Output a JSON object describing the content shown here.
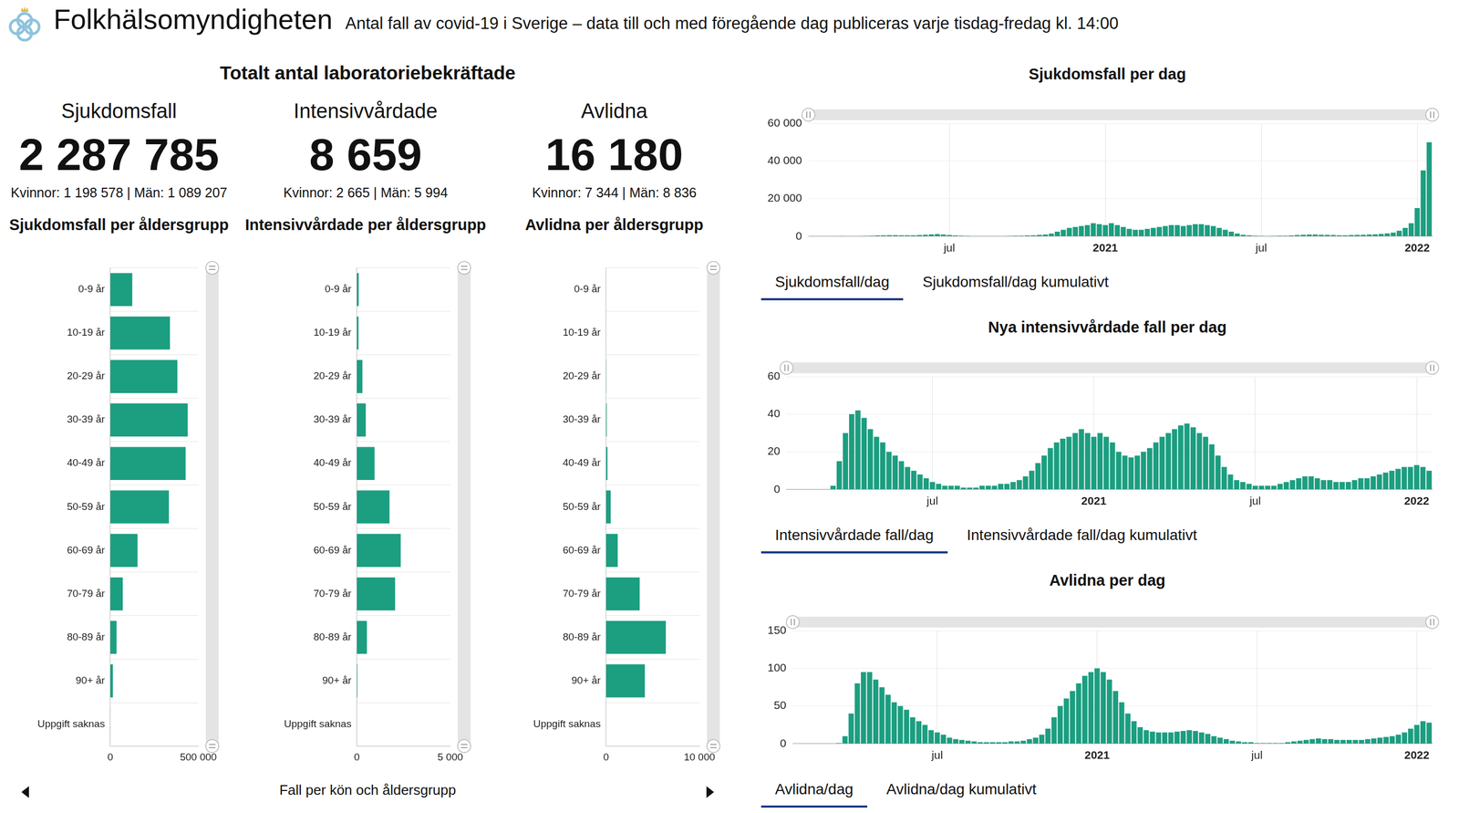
{
  "header": {
    "title": "Folkhälsomyndigheten",
    "subtitle": "Antal fall av covid-19 i Sverige – data till och med föregående dag publiceras varje tisdag-fredag kl. 14:00"
  },
  "section_title": "Totalt antal laboratoriebekräftade",
  "kpis": [
    {
      "title": "Sjukdomsfall",
      "value": "2 287 785",
      "breakdown": "Kvinnor: 1 198 578 | Män: 1 089 207"
    },
    {
      "title": "Intensivvårdade",
      "value": "8 659",
      "breakdown": "Kvinnor: 2 665 | Män: 5 994"
    },
    {
      "title": "Avlidna",
      "value": "16 180",
      "breakdown": "Kvinnor: 7 344 | Män: 8 836"
    }
  ],
  "footer_caption": "Fall per kön och åldersgrupp",
  "tabs": [
    [
      "Sjukdomsfall/dag",
      "Sjukdomsfall/dag kumulativt"
    ],
    [
      "Intensivvårdade fall/dag",
      "Intensivvårdade fall/dag kumulativt"
    ],
    [
      "Avlidna/dag",
      "Avlidna/dag kumulativt"
    ]
  ],
  "chart_data": [
    {
      "type": "bar",
      "title": "Sjukdomsfall per åldersgrupp",
      "orientation": "horizontal",
      "grid": true,
      "color": "#1c9e80",
      "categories": [
        "0-9 år",
        "10-19 år",
        "20-29 år",
        "30-39 år",
        "40-49 år",
        "50-59 år",
        "60-69 år",
        "70-79 år",
        "80-89 år",
        "90+ år",
        "Uppgift saknas"
      ],
      "values": [
        125000,
        339000,
        381000,
        440000,
        428000,
        333000,
        155000,
        71000,
        36000,
        15000,
        1000
      ],
      "xlim": [
        0,
        500000
      ],
      "xticks": [
        0,
        {
          "value": 500000,
          "label": "500 000"
        }
      ]
    },
    {
      "type": "bar",
      "title": "Intensivvårdade per åldersgrupp",
      "orientation": "horizontal",
      "grid": true,
      "color": "#1c9e80",
      "categories": [
        "0-9 år",
        "10-19 år",
        "20-29 år",
        "30-39 år",
        "40-49 år",
        "50-59 år",
        "60-69 år",
        "70-79 år",
        "80-89 år",
        "90+ år",
        "Uppgift saknas"
      ],
      "values": [
        100,
        90,
        300,
        480,
        950,
        1750,
        2350,
        2050,
        540,
        30,
        0
      ],
      "xlim": [
        0,
        5000
      ],
      "xticks": [
        0,
        {
          "value": 5000,
          "label": "5 000"
        }
      ]
    },
    {
      "type": "bar",
      "title": "Avlidna per åldersgrupp",
      "orientation": "horizontal",
      "grid": true,
      "color": "#1c9e80",
      "categories": [
        "0-9 år",
        "10-19 år",
        "20-29 år",
        "30-39 år",
        "40-49 år",
        "50-59 år",
        "60-69 år",
        "70-79 år",
        "80-89 år",
        "90+ år",
        "Uppgift saknas"
      ],
      "values": [
        5,
        10,
        30,
        70,
        150,
        500,
        1250,
        3600,
        6400,
        4150,
        0
      ],
      "xlim": [
        0,
        10000
      ],
      "xticks": [
        0,
        {
          "value": 10000,
          "label": "10 000"
        }
      ]
    },
    {
      "type": "bar",
      "title": "Sjukdomsfall per dag",
      "grid": true,
      "color": "#1c9e80",
      "categories": [
        null,
        null,
        null,
        null,
        null,
        null,
        null,
        null,
        null,
        null,
        null,
        null,
        null,
        null,
        null,
        null,
        null,
        null,
        null,
        null,
        null,
        null,
        null,
        "jul",
        null,
        null,
        null,
        null,
        null,
        null,
        null,
        null,
        null,
        null,
        null,
        null,
        null,
        null,
        null,
        null,
        null,
        null,
        null,
        null,
        null,
        null,
        null,
        null,
        null,
        "2021",
        null,
        null,
        null,
        null,
        null,
        null,
        null,
        null,
        null,
        null,
        null,
        null,
        null,
        null,
        null,
        null,
        null,
        null,
        null,
        null,
        null,
        null,
        null,
        null,
        null,
        "jul",
        null,
        null,
        null,
        null,
        null,
        null,
        null,
        null,
        null,
        null,
        null,
        null,
        null,
        null,
        null,
        null,
        null,
        null,
        null,
        null,
        null,
        null,
        null,
        null,
        null,
        "2022",
        null,
        null
      ],
      "values": [
        0,
        0,
        0,
        0,
        0,
        10,
        50,
        150,
        200,
        300,
        400,
        500,
        600,
        650,
        650,
        600,
        600,
        600,
        700,
        900,
        1100,
        1200,
        1000,
        700,
        500,
        350,
        300,
        250,
        250,
        250,
        250,
        250,
        250,
        300,
        350,
        400,
        500,
        600,
        800,
        1000,
        1500,
        2500,
        3500,
        4500,
        5000,
        5500,
        6000,
        7000,
        6500,
        6000,
        7000,
        6000,
        5000,
        4000,
        3500,
        3500,
        4000,
        4500,
        5000,
        5500,
        6000,
        6000,
        5500,
        6000,
        6500,
        6500,
        6000,
        5500,
        4500,
        3500,
        2500,
        1500,
        900,
        600,
        400,
        300,
        250,
        300,
        350,
        400,
        500,
        700,
        900,
        1000,
        1000,
        900,
        800,
        700,
        600,
        600,
        700,
        800,
        900,
        1000,
        1100,
        1300,
        1600,
        2000,
        3000,
        4500,
        7000,
        15000,
        35000,
        50000
      ],
      "ylim": [
        0,
        60000
      ],
      "yticks": [
        0,
        {
          "value": 20000,
          "label": "20 000"
        },
        {
          "value": 40000,
          "label": "40 000"
        },
        {
          "value": 60000,
          "label": "60 000"
        }
      ]
    },
    {
      "type": "bar",
      "title": "Nya intensivvårdade fall per dag",
      "grid": true,
      "color": "#1c9e80",
      "categories": [
        null,
        null,
        null,
        null,
        null,
        null,
        null,
        null,
        null,
        null,
        null,
        null,
        null,
        null,
        null,
        null,
        null,
        null,
        null,
        null,
        null,
        null,
        null,
        "jul",
        null,
        null,
        null,
        null,
        null,
        null,
        null,
        null,
        null,
        null,
        null,
        null,
        null,
        null,
        null,
        null,
        null,
        null,
        null,
        null,
        null,
        null,
        null,
        null,
        null,
        "2021",
        null,
        null,
        null,
        null,
        null,
        null,
        null,
        null,
        null,
        null,
        null,
        null,
        null,
        null,
        null,
        null,
        null,
        null,
        null,
        null,
        null,
        null,
        null,
        null,
        null,
        "jul",
        null,
        null,
        null,
        null,
        null,
        null,
        null,
        null,
        null,
        null,
        null,
        null,
        null,
        null,
        null,
        null,
        null,
        null,
        null,
        null,
        null,
        null,
        null,
        null,
        null,
        "2022",
        null,
        null
      ],
      "values": [
        0,
        0,
        0,
        0,
        0,
        0,
        0,
        2,
        15,
        30,
        40,
        42,
        38,
        32,
        28,
        25,
        20,
        18,
        15,
        12,
        10,
        8,
        6,
        4,
        3,
        2,
        2,
        2,
        1,
        1,
        1,
        2,
        2,
        2,
        3,
        3,
        4,
        5,
        7,
        10,
        14,
        18,
        22,
        25,
        27,
        28,
        30,
        32,
        30,
        28,
        30,
        28,
        25,
        20,
        18,
        17,
        18,
        20,
        22,
        25,
        28,
        30,
        32,
        34,
        35,
        33,
        30,
        28,
        24,
        18,
        12,
        8,
        5,
        4,
        3,
        2,
        2,
        2,
        2,
        3,
        4,
        5,
        6,
        7,
        7,
        6,
        5,
        5,
        4,
        4,
        4,
        5,
        6,
        6,
        7,
        8,
        9,
        10,
        11,
        12,
        12,
        13,
        12,
        10
      ],
      "ylim": [
        0,
        60
      ],
      "yticks": [
        0,
        20,
        40,
        60
      ]
    },
    {
      "type": "bar",
      "title": "Avlidna per dag",
      "grid": true,
      "color": "#1c9e80",
      "categories": [
        null,
        null,
        null,
        null,
        null,
        null,
        null,
        null,
        null,
        null,
        null,
        null,
        null,
        null,
        null,
        null,
        null,
        null,
        null,
        null,
        null,
        null,
        null,
        "jul",
        null,
        null,
        null,
        null,
        null,
        null,
        null,
        null,
        null,
        null,
        null,
        null,
        null,
        null,
        null,
        null,
        null,
        null,
        null,
        null,
        null,
        null,
        null,
        null,
        null,
        "2021",
        null,
        null,
        null,
        null,
        null,
        null,
        null,
        null,
        null,
        null,
        null,
        null,
        null,
        null,
        null,
        null,
        null,
        null,
        null,
        null,
        null,
        null,
        null,
        null,
        null,
        "jul",
        null,
        null,
        null,
        null,
        null,
        null,
        null,
        null,
        null,
        null,
        null,
        null,
        null,
        null,
        null,
        null,
        null,
        null,
        null,
        null,
        null,
        null,
        null,
        null,
        null,
        "2022",
        null,
        null
      ],
      "values": [
        0,
        0,
        0,
        0,
        0,
        0,
        0,
        1,
        10,
        40,
        80,
        95,
        95,
        85,
        75,
        65,
        55,
        50,
        45,
        35,
        30,
        25,
        18,
        15,
        12,
        8,
        6,
        5,
        4,
        3,
        2,
        2,
        2,
        2,
        2,
        3,
        3,
        4,
        6,
        8,
        12,
        20,
        35,
        50,
        60,
        70,
        80,
        90,
        95,
        100,
        95,
        85,
        70,
        55,
        40,
        30,
        22,
        18,
        16,
        15,
        15,
        15,
        16,
        17,
        18,
        17,
        15,
        13,
        10,
        8,
        6,
        4,
        3,
        2,
        2,
        1,
        1,
        1,
        1,
        1,
        2,
        3,
        4,
        5,
        6,
        7,
        6,
        6,
        5,
        5,
        5,
        5,
        5,
        6,
        7,
        8,
        9,
        10,
        12,
        15,
        20,
        25,
        30,
        28
      ],
      "ylim": [
        0,
        150
      ],
      "yticks": [
        0,
        50,
        100,
        150
      ]
    }
  ]
}
